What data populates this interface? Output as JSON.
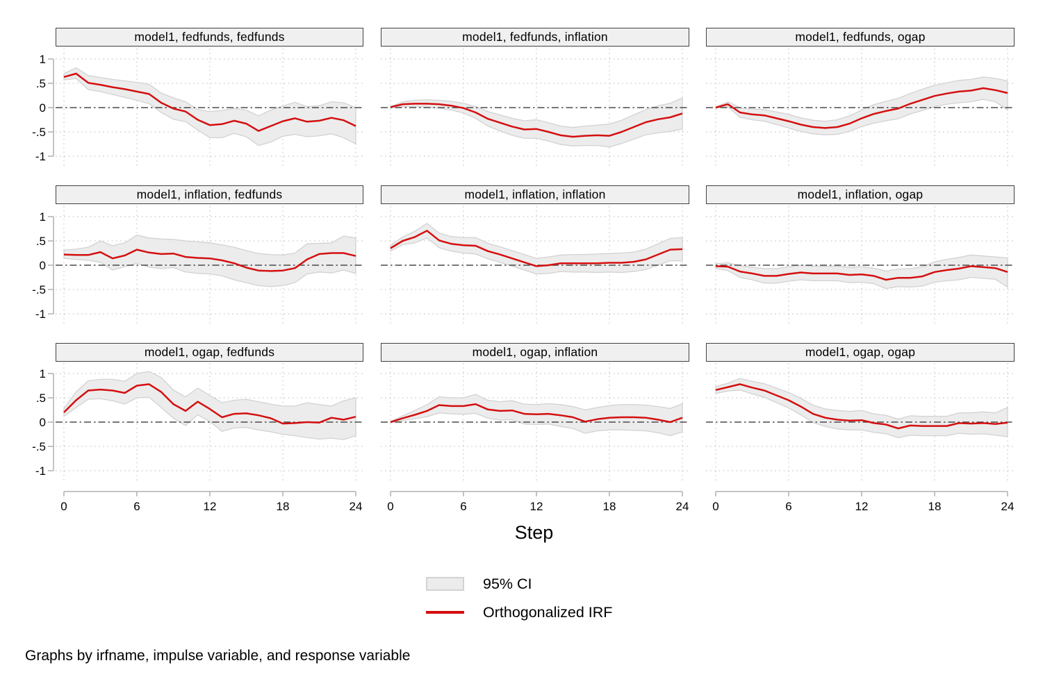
{
  "figure": {
    "xlabel": "Step",
    "caption": "Graphs by irfname, impulse variable, and response variable",
    "legend": [
      {
        "swatch": "area",
        "label": "95% CI"
      },
      {
        "swatch": "line",
        "label": "Orthogonalized IRF"
      }
    ]
  },
  "colors": {
    "irf_line": "#d40f0f",
    "ci_fill": "#ececec",
    "ci_border": "#d2d2d2",
    "grid_dotted": "#c8c8c8",
    "zero_line": "#4a4a4a",
    "axis": "#b0b0b0",
    "title_fill": "#f0f0f0",
    "title_border": "#404040",
    "text": "#000000"
  },
  "axes": {
    "x_ticks": [
      0,
      6,
      12,
      18,
      24
    ],
    "x_tick_labels": [
      "0",
      "6",
      "12",
      "18",
      "24"
    ],
    "x_range": [
      0,
      24
    ],
    "y_ticks": [
      1,
      0.5,
      0,
      -0.5,
      -1
    ],
    "y_tick_labels": [
      "1",
      ".5",
      "0",
      "-.5",
      "-1"
    ],
    "y_range": [
      -1,
      1
    ],
    "grid": true,
    "zero_line": true
  },
  "chart_data": [
    {
      "type": "line",
      "title": "model1, fedfunds, fedfunds",
      "irfname": "model1",
      "impulse": "fedfunds",
      "response": "fedfunds",
      "x": [
        0,
        1,
        2,
        3,
        4,
        5,
        6,
        7,
        8,
        9,
        10,
        11,
        12,
        13,
        14,
        15,
        16,
        17,
        18,
        19,
        20,
        21,
        22,
        23,
        24
      ],
      "irf": [
        0.63,
        0.7,
        0.51,
        0.47,
        0.42,
        0.38,
        0.33,
        0.28,
        0.1,
        -0.02,
        -0.08,
        -0.25,
        -0.36,
        -0.34,
        -0.27,
        -0.33,
        -0.48,
        -0.38,
        -0.28,
        -0.22,
        -0.29,
        -0.27,
        -0.21,
        -0.26,
        -0.38
      ],
      "ci_upper": [
        0.7,
        0.82,
        0.66,
        0.62,
        0.58,
        0.55,
        0.52,
        0.48,
        0.3,
        0.2,
        0.12,
        -0.04,
        -0.08,
        -0.06,
        -0.02,
        -0.05,
        -0.17,
        -0.05,
        0.03,
        0.11,
        0.02,
        0.04,
        0.12,
        0.1,
        0.0
      ],
      "ci_lower": [
        0.57,
        0.6,
        0.37,
        0.33,
        0.27,
        0.21,
        0.15,
        0.08,
        -0.1,
        -0.24,
        -0.29,
        -0.46,
        -0.62,
        -0.62,
        -0.53,
        -0.6,
        -0.78,
        -0.71,
        -0.59,
        -0.55,
        -0.6,
        -0.58,
        -0.54,
        -0.62,
        -0.75
      ]
    },
    {
      "type": "line",
      "title": "model1, fedfunds, inflation",
      "irfname": "model1",
      "impulse": "fedfunds",
      "response": "inflation",
      "x": [
        0,
        1,
        2,
        3,
        4,
        5,
        6,
        7,
        8,
        9,
        10,
        11,
        12,
        13,
        14,
        15,
        16,
        17,
        18,
        19,
        20,
        21,
        22,
        23,
        24
      ],
      "irf": [
        0.01,
        0.07,
        0.08,
        0.08,
        0.07,
        0.04,
        -0.01,
        -0.1,
        -0.23,
        -0.31,
        -0.39,
        -0.45,
        -0.44,
        -0.5,
        -0.57,
        -0.6,
        -0.58,
        -0.57,
        -0.58,
        -0.5,
        -0.4,
        -0.3,
        -0.24,
        -0.2,
        -0.12
      ],
      "ci_upper": [
        0.02,
        0.12,
        0.15,
        0.16,
        0.15,
        0.13,
        0.09,
        0.02,
        -0.08,
        -0.15,
        -0.22,
        -0.27,
        -0.25,
        -0.31,
        -0.38,
        -0.41,
        -0.38,
        -0.36,
        -0.34,
        -0.26,
        -0.15,
        -0.04,
        0.04,
        0.09,
        0.2
      ],
      "ci_lower": [
        0.0,
        0.02,
        0.02,
        0.01,
        -0.01,
        -0.05,
        -0.11,
        -0.22,
        -0.38,
        -0.48,
        -0.57,
        -0.63,
        -0.63,
        -0.69,
        -0.76,
        -0.79,
        -0.78,
        -0.78,
        -0.81,
        -0.74,
        -0.65,
        -0.56,
        -0.52,
        -0.49,
        -0.44
      ]
    },
    {
      "type": "line",
      "title": "model1, fedfunds, ogap",
      "irfname": "model1",
      "impulse": "fedfunds",
      "response": "ogap",
      "x": [
        0,
        1,
        2,
        3,
        4,
        5,
        6,
        7,
        8,
        9,
        10,
        11,
        12,
        13,
        14,
        15,
        16,
        17,
        18,
        19,
        20,
        21,
        22,
        23,
        24
      ],
      "irf": [
        0.0,
        0.07,
        -0.1,
        -0.14,
        -0.16,
        -0.22,
        -0.28,
        -0.35,
        -0.4,
        -0.42,
        -0.4,
        -0.33,
        -0.22,
        -0.13,
        -0.07,
        -0.02,
        0.08,
        0.16,
        0.24,
        0.29,
        0.33,
        0.35,
        0.4,
        0.36,
        0.3
      ],
      "ci_upper": [
        0.01,
        0.12,
        0.0,
        -0.03,
        -0.04,
        -0.09,
        -0.14,
        -0.21,
        -0.26,
        -0.28,
        -0.25,
        -0.17,
        -0.05,
        0.06,
        0.13,
        0.19,
        0.29,
        0.38,
        0.46,
        0.51,
        0.56,
        0.58,
        0.63,
        0.6,
        0.55
      ],
      "ci_lower": [
        -0.01,
        0.02,
        -0.2,
        -0.25,
        -0.28,
        -0.35,
        -0.42,
        -0.49,
        -0.54,
        -0.56,
        -0.55,
        -0.49,
        -0.39,
        -0.32,
        -0.27,
        -0.23,
        -0.13,
        -0.06,
        0.02,
        0.07,
        0.1,
        0.12,
        0.17,
        0.12,
        -0.05
      ]
    },
    {
      "type": "line",
      "title": "model1, inflation, fedfunds",
      "irfname": "model1",
      "impulse": "inflation",
      "response": "fedfunds",
      "x": [
        0,
        1,
        2,
        3,
        4,
        5,
        6,
        7,
        8,
        9,
        10,
        11,
        12,
        13,
        14,
        15,
        16,
        17,
        18,
        19,
        20,
        21,
        22,
        23,
        24
      ],
      "irf": [
        0.22,
        0.21,
        0.21,
        0.27,
        0.14,
        0.2,
        0.32,
        0.26,
        0.23,
        0.24,
        0.17,
        0.15,
        0.14,
        0.1,
        0.04,
        -0.05,
        -0.11,
        -0.12,
        -0.11,
        -0.06,
        0.12,
        0.23,
        0.25,
        0.25,
        0.19
      ],
      "ci_upper": [
        0.31,
        0.33,
        0.37,
        0.5,
        0.4,
        0.46,
        0.62,
        0.56,
        0.54,
        0.53,
        0.5,
        0.48,
        0.46,
        0.42,
        0.37,
        0.3,
        0.24,
        0.22,
        0.21,
        0.25,
        0.44,
        0.45,
        0.46,
        0.6,
        0.56
      ],
      "ci_lower": [
        0.14,
        0.12,
        0.1,
        0.06,
        -0.1,
        -0.03,
        0.04,
        -0.04,
        -0.07,
        -0.05,
        -0.14,
        -0.17,
        -0.18,
        -0.22,
        -0.3,
        -0.36,
        -0.42,
        -0.44,
        -0.42,
        -0.36,
        -0.18,
        -0.14,
        -0.16,
        -0.1,
        -0.17
      ]
    },
    {
      "type": "line",
      "title": "model1, inflation, inflation",
      "irfname": "model1",
      "impulse": "inflation",
      "response": "inflation",
      "x": [
        0,
        1,
        2,
        3,
        4,
        5,
        6,
        7,
        8,
        9,
        10,
        11,
        12,
        13,
        14,
        15,
        16,
        17,
        18,
        19,
        20,
        21,
        22,
        23,
        24
      ],
      "irf": [
        0.35,
        0.5,
        0.58,
        0.71,
        0.51,
        0.44,
        0.41,
        0.4,
        0.29,
        0.22,
        0.14,
        0.06,
        -0.02,
        0.0,
        0.04,
        0.04,
        0.04,
        0.04,
        0.05,
        0.05,
        0.07,
        0.12,
        0.22,
        0.32,
        0.33
      ],
      "ci_upper": [
        0.41,
        0.58,
        0.7,
        0.86,
        0.66,
        0.59,
        0.57,
        0.57,
        0.45,
        0.38,
        0.3,
        0.22,
        0.14,
        0.17,
        0.21,
        0.22,
        0.22,
        0.23,
        0.24,
        0.25,
        0.27,
        0.33,
        0.44,
        0.55,
        0.57
      ],
      "ci_lower": [
        0.29,
        0.42,
        0.46,
        0.56,
        0.36,
        0.29,
        0.25,
        0.23,
        0.13,
        0.06,
        -0.02,
        -0.1,
        -0.18,
        -0.17,
        -0.13,
        -0.14,
        -0.14,
        -0.15,
        -0.14,
        -0.15,
        -0.13,
        -0.09,
        0.0,
        0.09,
        0.09
      ]
    },
    {
      "type": "line",
      "title": "model1, inflation, ogap",
      "irfname": "model1",
      "impulse": "inflation",
      "response": "ogap",
      "x": [
        0,
        1,
        2,
        3,
        4,
        5,
        6,
        7,
        8,
        9,
        10,
        11,
        12,
        13,
        14,
        15,
        16,
        17,
        18,
        19,
        20,
        21,
        22,
        23,
        24
      ],
      "irf": [
        -0.02,
        -0.03,
        -0.13,
        -0.17,
        -0.22,
        -0.22,
        -0.18,
        -0.15,
        -0.17,
        -0.17,
        -0.17,
        -0.2,
        -0.19,
        -0.22,
        -0.3,
        -0.26,
        -0.26,
        -0.23,
        -0.14,
        -0.1,
        -0.07,
        -0.02,
        -0.04,
        -0.06,
        -0.14
      ],
      "ci_upper": [
        0.03,
        0.05,
        -0.01,
        -0.04,
        -0.07,
        -0.07,
        -0.03,
        0.0,
        -0.02,
        -0.02,
        -0.02,
        -0.04,
        -0.03,
        -0.06,
        -0.12,
        -0.08,
        -0.07,
        -0.03,
        0.07,
        0.12,
        0.16,
        0.21,
        0.19,
        0.17,
        0.15
      ],
      "ci_lower": [
        -0.07,
        -0.11,
        -0.25,
        -0.3,
        -0.37,
        -0.37,
        -0.33,
        -0.3,
        -0.32,
        -0.32,
        -0.32,
        -0.36,
        -0.35,
        -0.38,
        -0.48,
        -0.44,
        -0.45,
        -0.43,
        -0.35,
        -0.32,
        -0.3,
        -0.25,
        -0.27,
        -0.29,
        -0.45
      ]
    },
    {
      "type": "line",
      "title": "model1, ogap, fedfunds",
      "irfname": "model1",
      "impulse": "ogap",
      "response": "fedfunds",
      "x": [
        0,
        1,
        2,
        3,
        4,
        5,
        6,
        7,
        8,
        9,
        10,
        11,
        12,
        13,
        14,
        15,
        16,
        17,
        18,
        19,
        20,
        21,
        22,
        23,
        24
      ],
      "irf": [
        0.2,
        0.45,
        0.65,
        0.67,
        0.65,
        0.6,
        0.75,
        0.78,
        0.62,
        0.37,
        0.23,
        0.42,
        0.27,
        0.1,
        0.17,
        0.18,
        0.14,
        0.08,
        -0.03,
        -0.02,
        0.0,
        -0.01,
        0.09,
        0.05,
        0.11
      ],
      "ci_upper": [
        0.28,
        0.62,
        0.85,
        0.88,
        0.88,
        0.84,
        1.0,
        1.04,
        0.92,
        0.66,
        0.52,
        0.7,
        0.55,
        0.4,
        0.45,
        0.47,
        0.42,
        0.37,
        0.33,
        0.33,
        0.4,
        0.36,
        0.33,
        0.44,
        0.5
      ],
      "ci_lower": [
        0.12,
        0.3,
        0.47,
        0.48,
        0.44,
        0.37,
        0.5,
        0.51,
        0.3,
        0.08,
        -0.07,
        0.15,
        0.01,
        -0.19,
        -0.12,
        -0.11,
        -0.16,
        -0.2,
        -0.25,
        -0.28,
        -0.32,
        -0.35,
        -0.33,
        -0.36,
        -0.28
      ]
    },
    {
      "type": "line",
      "title": "model1, ogap, inflation",
      "irfname": "model1",
      "impulse": "ogap",
      "response": "inflation",
      "x": [
        0,
        1,
        2,
        3,
        4,
        5,
        6,
        7,
        8,
        9,
        10,
        11,
        12,
        13,
        14,
        15,
        16,
        17,
        18,
        19,
        20,
        21,
        22,
        23,
        24
      ],
      "irf": [
        0.0,
        0.08,
        0.15,
        0.23,
        0.35,
        0.33,
        0.33,
        0.37,
        0.26,
        0.23,
        0.24,
        0.17,
        0.16,
        0.17,
        0.14,
        0.1,
        0.01,
        0.06,
        0.09,
        0.1,
        0.1,
        0.09,
        0.05,
        0.0,
        0.09
      ],
      "ci_upper": [
        0.01,
        0.13,
        0.24,
        0.36,
        0.52,
        0.5,
        0.5,
        0.57,
        0.45,
        0.42,
        0.44,
        0.37,
        0.36,
        0.38,
        0.36,
        0.32,
        0.25,
        0.3,
        0.34,
        0.36,
        0.36,
        0.35,
        0.32,
        0.28,
        0.38
      ],
      "ci_lower": [
        -0.01,
        0.03,
        0.07,
        0.11,
        0.19,
        0.17,
        0.16,
        0.18,
        0.08,
        0.04,
        0.05,
        -0.04,
        -0.05,
        -0.04,
        -0.09,
        -0.13,
        -0.23,
        -0.18,
        -0.16,
        -0.16,
        -0.17,
        -0.18,
        -0.22,
        -0.28,
        -0.2
      ]
    },
    {
      "type": "line",
      "title": "model1, ogap, ogap",
      "irfname": "model1",
      "impulse": "ogap",
      "response": "ogap",
      "x": [
        0,
        1,
        2,
        3,
        4,
        5,
        6,
        7,
        8,
        9,
        10,
        11,
        12,
        13,
        14,
        15,
        16,
        17,
        18,
        19,
        20,
        21,
        22,
        23,
        24
      ],
      "irf": [
        0.66,
        0.72,
        0.78,
        0.71,
        0.65,
        0.55,
        0.45,
        0.32,
        0.17,
        0.09,
        0.05,
        0.03,
        0.04,
        -0.02,
        -0.05,
        -0.13,
        -0.07,
        -0.08,
        -0.08,
        -0.08,
        -0.02,
        -0.03,
        -0.02,
        -0.04,
        -0.01
      ],
      "ci_upper": [
        0.73,
        0.8,
        0.9,
        0.84,
        0.79,
        0.7,
        0.61,
        0.49,
        0.35,
        0.27,
        0.24,
        0.22,
        0.24,
        0.17,
        0.14,
        0.06,
        0.13,
        0.12,
        0.12,
        0.12,
        0.19,
        0.19,
        0.21,
        0.19,
        0.3
      ],
      "ci_lower": [
        0.59,
        0.64,
        0.66,
        0.58,
        0.51,
        0.4,
        0.29,
        0.15,
        -0.01,
        -0.09,
        -0.14,
        -0.16,
        -0.16,
        -0.21,
        -0.24,
        -0.32,
        -0.27,
        -0.28,
        -0.28,
        -0.28,
        -0.23,
        -0.25,
        -0.24,
        -0.27,
        -0.3
      ]
    }
  ]
}
